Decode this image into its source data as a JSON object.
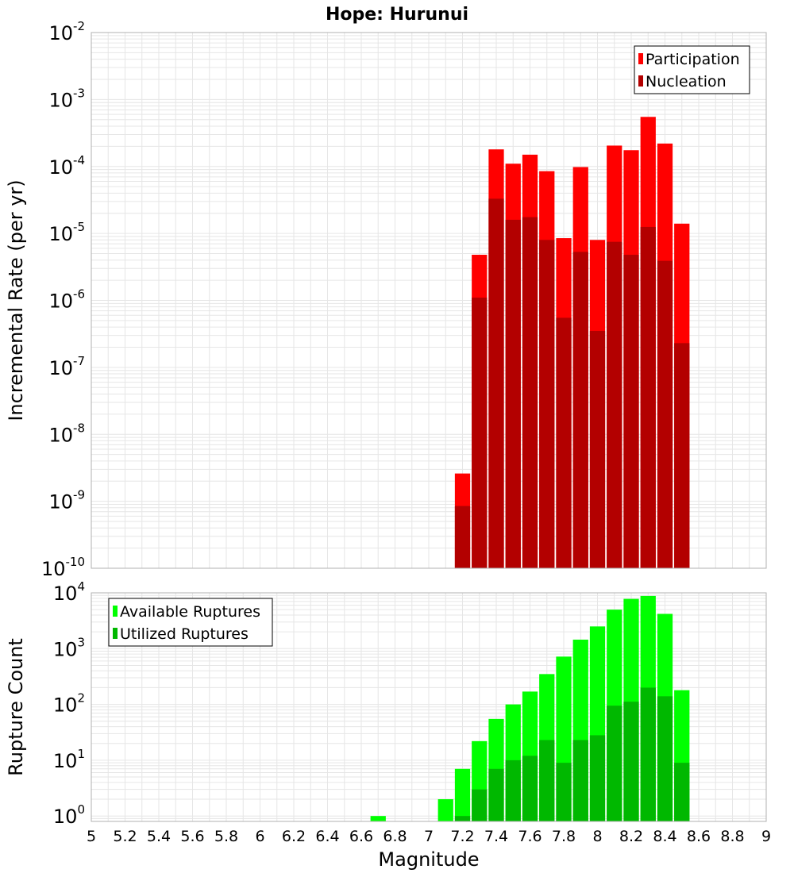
{
  "title": "Hope: Hurunui",
  "colors": {
    "participation": "#ff0000",
    "nucleation": "#b30000",
    "available": "#00ff00",
    "utilized": "#00b800",
    "grid": "#e6e6e6",
    "frame": "#b0b0b0",
    "bar_edge": "#ffffff"
  },
  "chart_data": [
    {
      "type": "bar",
      "title": "Hope: Hurunui",
      "xlabel": "",
      "ylabel": "Incremental Rate (per yr)",
      "yscale": "log",
      "xlim": [
        5,
        9
      ],
      "ylim": [
        1e-10,
        0.01
      ],
      "ytick_exponents": [
        -10,
        -9,
        -8,
        -7,
        -6,
        -5,
        -4,
        -3,
        -2
      ],
      "grid": true,
      "legend_position": "top-right",
      "x": [
        7.2,
        7.3,
        7.4,
        7.5,
        7.6,
        7.7,
        7.8,
        7.9,
        8.0,
        8.1,
        8.2,
        8.3,
        8.4,
        8.5
      ],
      "series": [
        {
          "name": "Participation",
          "color": "#ff0000",
          "values": [
            2.6e-09,
            4.8e-06,
            0.00018,
            0.00011,
            0.00015,
            8.5e-05,
            8.5e-06,
            9.8e-05,
            8e-06,
            0.000205,
            0.000175,
            0.00055,
            0.00022,
            1.4e-05
          ]
        },
        {
          "name": "Nucleation",
          "color": "#b30000",
          "values": [
            8.5e-10,
            1.1e-06,
            3.3e-05,
            1.6e-05,
            1.75e-05,
            8e-06,
            5.5e-07,
            5.3e-06,
            3.5e-07,
            7.5e-06,
            4.8e-06,
            1.25e-05,
            3.9e-06,
            2.3e-07
          ]
        }
      ]
    },
    {
      "type": "bar",
      "title": "",
      "xlabel": "Magnitude",
      "ylabel": "Rupture Count",
      "yscale": "log",
      "xlim": [
        5,
        9
      ],
      "ylim": [
        0.8,
        10000
      ],
      "ytick_exponents": [
        0,
        1,
        2,
        3,
        4
      ],
      "xticks": [
        "5",
        "5.2",
        "5.4",
        "5.6",
        "5.8",
        "6",
        "6.2",
        "6.4",
        "6.6",
        "6.8",
        "7",
        "7.2",
        "7.4",
        "7.6",
        "7.8",
        "8",
        "8.2",
        "8.4",
        "8.6",
        "8.8",
        "9"
      ],
      "grid": true,
      "legend_position": "top-left",
      "x": [
        6.7,
        7.1,
        7.2,
        7.3,
        7.4,
        7.5,
        7.6,
        7.7,
        7.8,
        7.9,
        8.0,
        8.1,
        8.2,
        8.3,
        8.4,
        8.5
      ],
      "series": [
        {
          "name": "Available Ruptures",
          "color": "#00ff00",
          "values": [
            1,
            2,
            7,
            22,
            55,
            100,
            170,
            350,
            720,
            1450,
            2500,
            5000,
            7800,
            8800,
            4200,
            180
          ]
        },
        {
          "name": "Utilized Ruptures",
          "color": "#00b800",
          "values": [
            null,
            null,
            1,
            3,
            7,
            10,
            12,
            23,
            9,
            23,
            28,
            95,
            112,
            200,
            140,
            9
          ]
        }
      ]
    }
  ]
}
